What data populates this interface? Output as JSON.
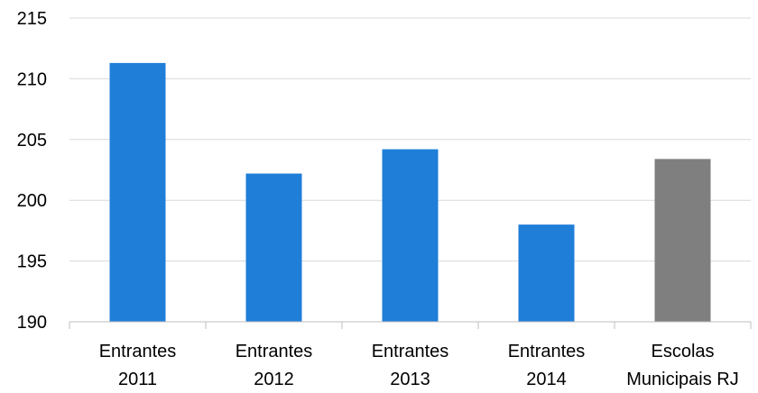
{
  "chart_data": {
    "type": "bar",
    "categories": [
      [
        "Entrantes",
        "2011"
      ],
      [
        "Entrantes",
        "2012"
      ],
      [
        "Entrantes",
        "2013"
      ],
      [
        "Entrantes",
        "2014"
      ],
      [
        "Escolas",
        "Municipais RJ"
      ]
    ],
    "values": [
      211.3,
      202.2,
      204.2,
      198.0,
      203.4
    ],
    "bar_colors": [
      "#1f7ed8",
      "#1f7ed8",
      "#1f7ed8",
      "#1f7ed8",
      "#7f7f7f"
    ],
    "ylim": [
      190,
      215
    ],
    "yticks": [
      190,
      195,
      200,
      205,
      210,
      215
    ],
    "grid": true,
    "grid_color": "#d9d9d9",
    "axis_color": "#bfbfbf"
  }
}
